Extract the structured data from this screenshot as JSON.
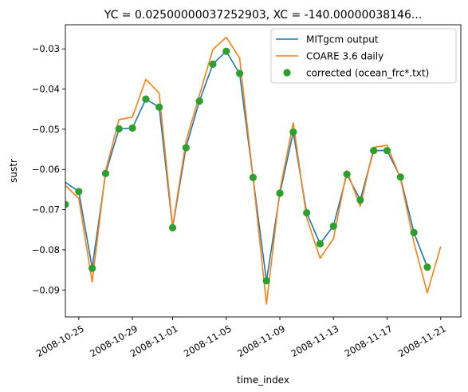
{
  "chart_data": {
    "type": "line",
    "title": "YC = 0.02500000037252903, XC = -140.00000038146...",
    "xlabel": "time_index",
    "ylabel": "sustr",
    "x_ticks": [
      "2008-10-25",
      "2008-10-29",
      "2008-11-01",
      "2008-11-05",
      "2008-11-09",
      "2008-11-13",
      "2008-11-17",
      "2008-11-21"
    ],
    "y_ticks": [
      "−0.03",
      "−0.04",
      "−0.05",
      "−0.06",
      "−0.07",
      "−0.08",
      "−0.09"
    ],
    "xlim": [
      "2008-10-24",
      "2008-11-22.5"
    ],
    "ylim": [
      -0.0967,
      -0.024
    ],
    "legend_position": "upper right",
    "series": [
      {
        "name": "MITgcm output",
        "color": "#1f77b4",
        "style": "line",
        "x": [
          "2008-10-24",
          "2008-10-25",
          "2008-10-26",
          "2008-10-27",
          "2008-10-28",
          "2008-10-29",
          "2008-10-30",
          "2008-10-31",
          "2008-11-01",
          "2008-11-02",
          "2008-11-03",
          "2008-11-04",
          "2008-11-05",
          "2008-11-06",
          "2008-11-07",
          "2008-11-08",
          "2008-11-09",
          "2008-11-10",
          "2008-11-11",
          "2008-11-12",
          "2008-11-13",
          "2008-11-14",
          "2008-11-15",
          "2008-11-16",
          "2008-11-17",
          "2008-11-18",
          "2008-11-19",
          "2008-11-20"
        ],
        "values": [
          -0.0632,
          -0.0655,
          -0.0845,
          -0.061,
          -0.0499,
          -0.0497,
          -0.0425,
          -0.0445,
          -0.0745,
          -0.0545,
          -0.043,
          -0.0338,
          -0.0306,
          -0.0362,
          -0.062,
          -0.0878,
          -0.066,
          -0.0507,
          -0.0708,
          -0.0785,
          -0.074,
          -0.0612,
          -0.0676,
          -0.0553,
          -0.0553,
          -0.062,
          -0.0757,
          -0.0843
        ]
      },
      {
        "name": "COARE 3.6 daily",
        "color": "#ff7f0e",
        "style": "line",
        "x": [
          "2008-10-24",
          "2008-10-25",
          "2008-10-26",
          "2008-10-27",
          "2008-10-28",
          "2008-10-29",
          "2008-10-30",
          "2008-10-31",
          "2008-11-01",
          "2008-11-02",
          "2008-11-03",
          "2008-11-04",
          "2008-11-05",
          "2008-11-06",
          "2008-11-07",
          "2008-11-08",
          "2008-11-09",
          "2008-11-10",
          "2008-11-11",
          "2008-11-12",
          "2008-11-13",
          "2008-11-14",
          "2008-11-15",
          "2008-11-16",
          "2008-11-17",
          "2008-11-18",
          "2008-11-19",
          "2008-11-20",
          "2008-11-21"
        ],
        "values": [
          -0.064,
          -0.0672,
          -0.088,
          -0.0604,
          -0.0476,
          -0.047,
          -0.0376,
          -0.041,
          -0.0742,
          -0.053,
          -0.0415,
          -0.0302,
          -0.0271,
          -0.0323,
          -0.062,
          -0.0935,
          -0.0652,
          -0.0484,
          -0.072,
          -0.0821,
          -0.0772,
          -0.0603,
          -0.0692,
          -0.0545,
          -0.054,
          -0.0622,
          -0.0782,
          -0.0907,
          -0.0792
        ]
      },
      {
        "name": "corrected (ocean_frc*.txt)",
        "color": "#2ca02c",
        "style": "markers",
        "x": [
          "2008-10-24",
          "2008-10-25",
          "2008-10-26",
          "2008-10-27",
          "2008-10-28",
          "2008-10-29",
          "2008-10-30",
          "2008-10-31",
          "2008-11-01",
          "2008-11-02",
          "2008-11-03",
          "2008-11-04",
          "2008-11-05",
          "2008-11-06",
          "2008-11-07",
          "2008-11-08",
          "2008-11-09",
          "2008-11-10",
          "2008-11-11",
          "2008-11-12",
          "2008-11-13",
          "2008-11-14",
          "2008-11-15",
          "2008-11-16",
          "2008-11-17",
          "2008-11-18",
          "2008-11-19",
          "2008-11-20"
        ],
        "values": [
          -0.0687,
          -0.0655,
          -0.0846,
          -0.061,
          -0.0499,
          -0.0497,
          -0.0425,
          -0.0445,
          -0.0745,
          -0.0546,
          -0.043,
          -0.0338,
          -0.0306,
          -0.0361,
          -0.062,
          -0.0877,
          -0.0659,
          -0.0507,
          -0.0708,
          -0.0785,
          -0.0741,
          -0.0612,
          -0.0676,
          -0.0553,
          -0.0553,
          -0.0619,
          -0.0757,
          -0.0843
        ]
      }
    ]
  }
}
